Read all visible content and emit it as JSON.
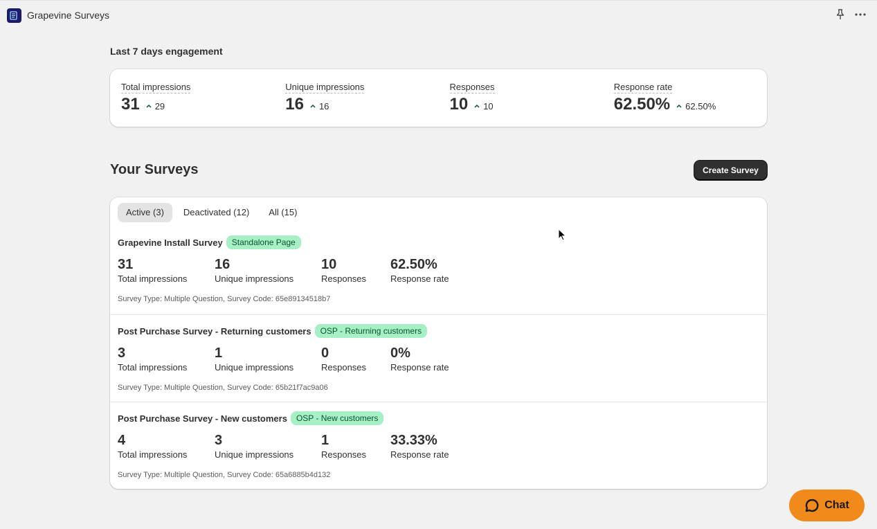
{
  "app": {
    "title": "Grapevine Surveys"
  },
  "engagement": {
    "title": "Last 7 days engagement",
    "metrics": [
      {
        "label": "Total impressions",
        "value": "31",
        "trend": "29"
      },
      {
        "label": "Unique impressions",
        "value": "16",
        "trend": "16"
      },
      {
        "label": "Responses",
        "value": "10",
        "trend": "10"
      },
      {
        "label": "Response rate",
        "value": "62.50%",
        "trend": "62.50%"
      }
    ]
  },
  "surveys": {
    "title": "Your Surveys",
    "create_label": "Create Survey",
    "tabs": [
      {
        "label": "Active (3)",
        "active": true
      },
      {
        "label": "Deactivated (12)",
        "active": false
      },
      {
        "label": "All (15)",
        "active": false
      }
    ],
    "items": [
      {
        "name": "Grapevine Install Survey",
        "badge": "Standalone Page",
        "stats": [
          {
            "value": "31",
            "label": "Total impressions"
          },
          {
            "value": "16",
            "label": "Unique impressions"
          },
          {
            "value": "10",
            "label": "Responses"
          },
          {
            "value": "62.50%",
            "label": "Response rate"
          }
        ],
        "meta": "Survey Type: Multiple Question, Survey Code: 65e89134518b7"
      },
      {
        "name": "Post Purchase Survey - Returning customers",
        "badge": "OSP - Returning customers",
        "stats": [
          {
            "value": "3",
            "label": "Total impressions"
          },
          {
            "value": "1",
            "label": "Unique impressions"
          },
          {
            "value": "0",
            "label": "Responses"
          },
          {
            "value": "0%",
            "label": "Response rate"
          }
        ],
        "meta": "Survey Type: Multiple Question, Survey Code: 65b21f7ac9a06"
      },
      {
        "name": "Post Purchase Survey - New customers",
        "badge": "OSP - New customers",
        "stats": [
          {
            "value": "4",
            "label": "Total impressions"
          },
          {
            "value": "3",
            "label": "Unique impressions"
          },
          {
            "value": "1",
            "label": "Responses"
          },
          {
            "value": "33.33%",
            "label": "Response rate"
          }
        ],
        "meta": "Survey Type: Multiple Question, Survey Code: 65a6885b4d132"
      }
    ]
  },
  "chat": {
    "label": "Chat"
  },
  "colors": {
    "accent": "#303030",
    "badge": "#a7f0c5",
    "chat": "#ef8a1b",
    "trend": "#0c5132"
  }
}
